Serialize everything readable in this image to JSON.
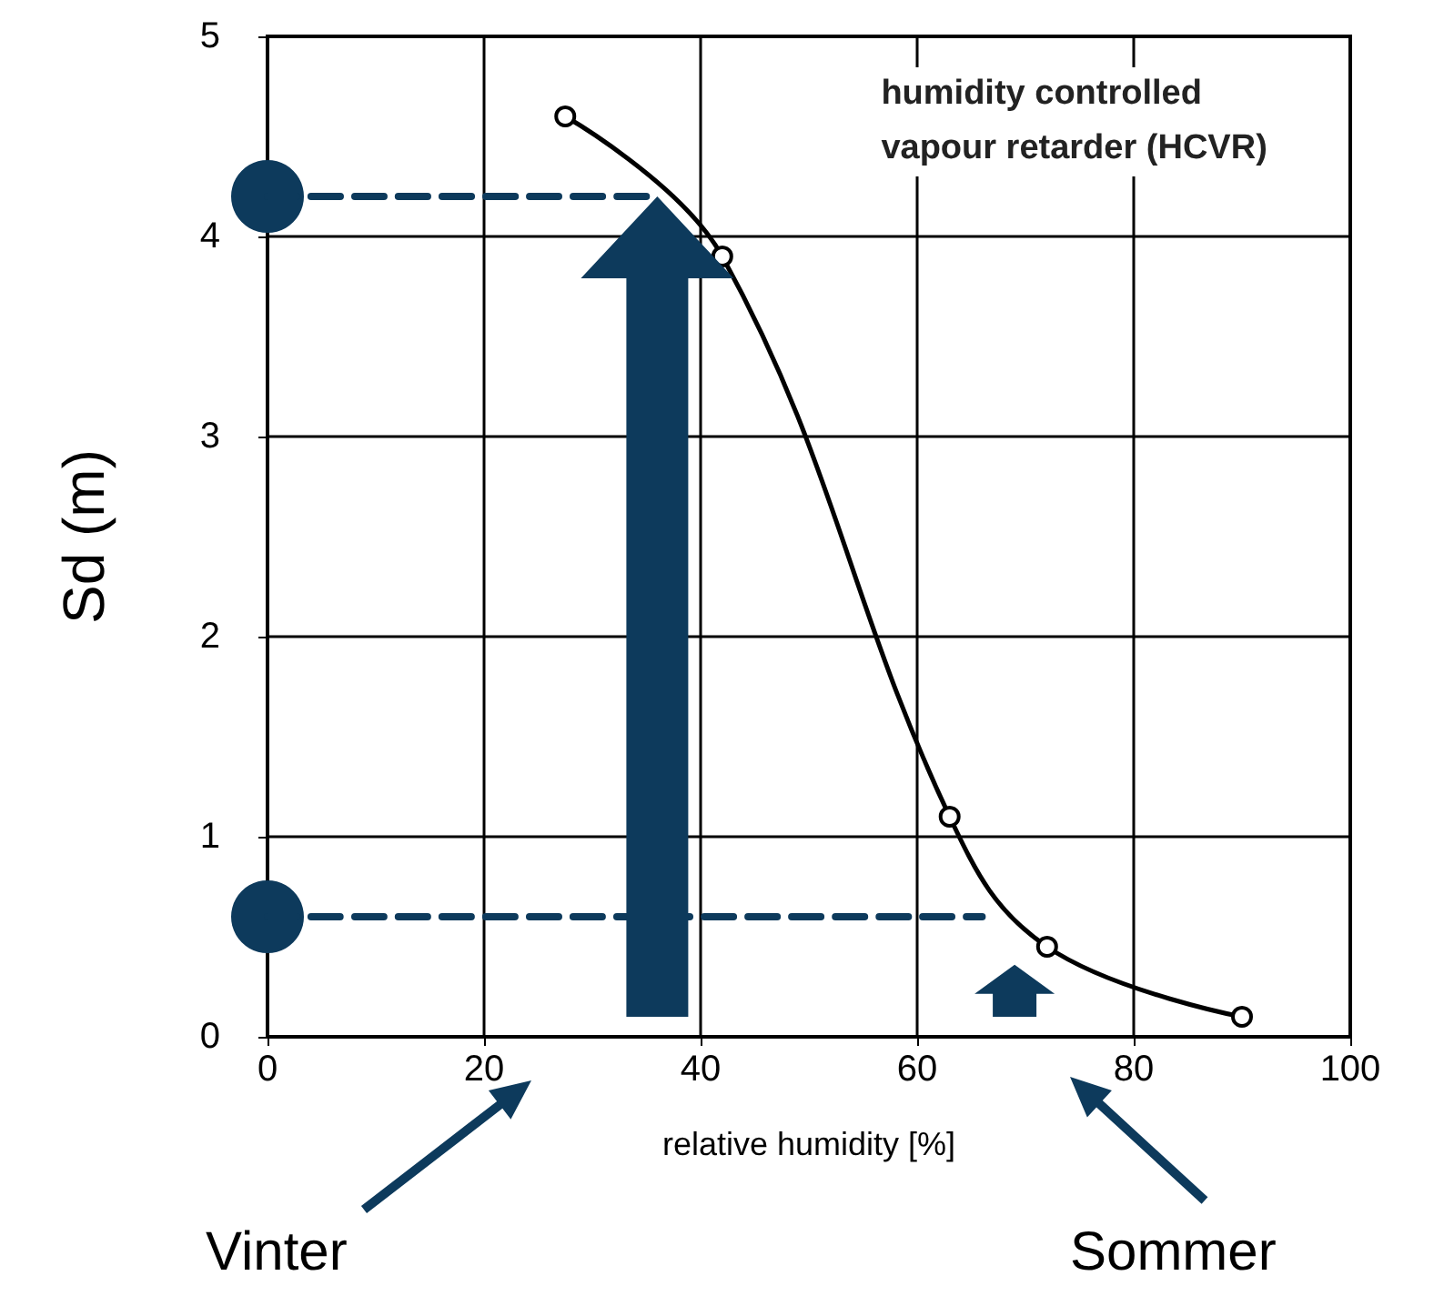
{
  "chart_data": {
    "type": "line",
    "xlabel": "relative humidity [%]",
    "ylabel": "Sd (m)",
    "xlim": [
      0,
      100
    ],
    "xticks": [
      0,
      20,
      40,
      60,
      80,
      100
    ],
    "ylim": [
      0,
      5
    ],
    "yticks": [
      0,
      1,
      2,
      3,
      4,
      5
    ],
    "grid": true,
    "annotations": [
      "humidity controlled vapour retarder (HCVR)",
      "Vinter",
      "Sommer"
    ],
    "series": [
      {
        "color": "#000000",
        "x": [
          27.5,
          42,
          63,
          72,
          90
        ],
        "values": [
          4.6,
          3.9,
          1.1,
          0.45,
          0.1
        ],
        "marker": "circle",
        "line_style": "solid"
      },
      {
        "color": "#0d3a5c",
        "x": [
          0,
          35
        ],
        "values": [
          4.2,
          4.2
        ],
        "marker": "none",
        "line_style": "dashed"
      },
      {
        "color": "#0d3a5c",
        "x": [
          0,
          66
        ],
        "values": [
          0.6,
          0.6
        ],
        "marker": "none",
        "line_style": "dashed"
      },
      {
        "type": "scatter",
        "color": "#0d3a5c",
        "x": [
          0,
          0
        ],
        "values": [
          4.2,
          0.6
        ],
        "marker": "circle"
      }
    ]
  }
}
